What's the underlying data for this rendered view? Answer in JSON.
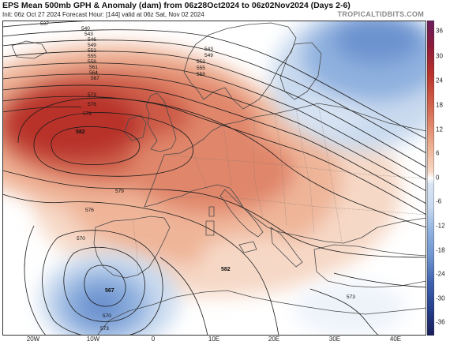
{
  "header": {
    "title": "EPS Mean 500mb GPH & Anomaly (dam) from 06z28Oct2024 to 06z02Nov2024 (Days 2-6)",
    "init_line": "Init: 06z Oct 27 2024   Forecast Hour: [144]   valid at 06z Sat, Nov 02 2024",
    "brand": "TROPICALTIDBITS.COM"
  },
  "map": {
    "region": "Europe and North Atlantic",
    "highs": [
      {
        "label": "582",
        "where": "west of Ireland"
      },
      {
        "label": "582",
        "where": "central Mediterranean"
      }
    ],
    "lows": [
      {
        "label": "567",
        "where": "off Portugal"
      }
    ],
    "contour_labels": [
      {
        "label": "537",
        "where": "top left"
      },
      {
        "label": "540",
        "where": "north Atlantic"
      },
      {
        "label": "543",
        "where": "north Atlantic"
      },
      {
        "label": "546",
        "where": "north Atlantic"
      },
      {
        "label": "549",
        "where": "north Atlantic"
      },
      {
        "label": "552",
        "where": "north Atlantic"
      },
      {
        "label": "555",
        "where": "north Atlantic"
      },
      {
        "label": "558",
        "where": "north Atlantic"
      },
      {
        "label": "561",
        "where": "north Atlantic"
      },
      {
        "label": "564",
        "where": "north Atlantic"
      },
      {
        "label": "567",
        "where": "north Atlantic"
      },
      {
        "label": "573",
        "where": "Atlantic west of Ireland"
      },
      {
        "label": "576",
        "where": "Atlantic west of Ireland"
      },
      {
        "label": "579",
        "where": "Atlantic west of Ireland"
      },
      {
        "label": "543",
        "where": "Norway"
      },
      {
        "label": "549",
        "where": "Norway"
      },
      {
        "label": "552",
        "where": "Norway"
      },
      {
        "label": "555",
        "where": "Norway"
      },
      {
        "label": "558",
        "where": "Norway"
      },
      {
        "label": "579",
        "where": "Bay of Biscay"
      },
      {
        "label": "576",
        "where": "west of Portugal"
      },
      {
        "label": "570",
        "where": "Iberian low"
      },
      {
        "label": "570",
        "where": "Iberian low south"
      },
      {
        "label": "573",
        "where": "south Atlantic edge"
      },
      {
        "label": "573",
        "where": "eastern Mediterranean"
      }
    ],
    "lon_labels": [
      "20W",
      "10W",
      "0",
      "10E",
      "20E",
      "30E",
      "40E"
    ]
  },
  "colorbar": {
    "ticks": [
      "36",
      "30",
      "24",
      "18",
      "12",
      "6",
      "0",
      "-6",
      "-12",
      "-18",
      "-24",
      "-30",
      "-36"
    ]
  }
}
